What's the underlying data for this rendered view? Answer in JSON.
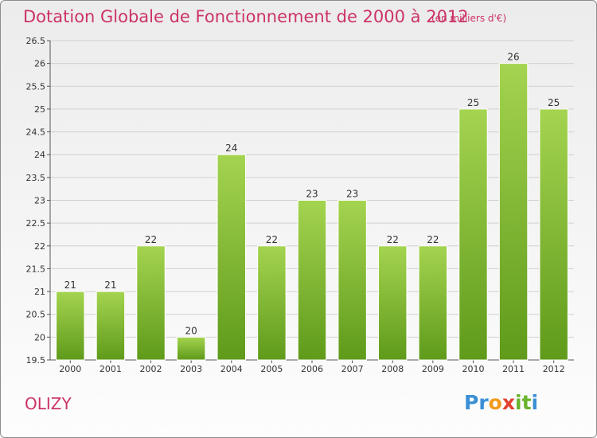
{
  "title": "Dotation Globale de Fonctionnement de 2000 à 2012",
  "subtitle": "(en milliers d'€)",
  "commune": "OLIZY",
  "logo": {
    "text": "Proxiti",
    "letters": [
      {
        "ch": "P",
        "color": "#3a8fd6"
      },
      {
        "ch": "r",
        "color": "#3a8fd6"
      },
      {
        "ch": "o",
        "color": "#f29a1c"
      },
      {
        "ch": "x",
        "color": "#e2412e"
      },
      {
        "ch": "i",
        "color": "#69b32d"
      },
      {
        "ch": "t",
        "color": "#69b32d"
      },
      {
        "ch": "i",
        "color": "#3a8fd6"
      }
    ]
  },
  "colors": {
    "title": "#cc3366",
    "bar_light": "#a4d450",
    "bar_dark": "#5f9a1a",
    "grid": "#d0d0d0"
  },
  "chart_data": {
    "type": "bar",
    "title": "Dotation Globale de Fonctionnement de 2000 à 2012",
    "subtitle": "(en milliers d'€)",
    "categories": [
      "2000",
      "2001",
      "2002",
      "2003",
      "2004",
      "2005",
      "2006",
      "2007",
      "2008",
      "2009",
      "2010",
      "2011",
      "2012"
    ],
    "values": [
      21,
      21,
      22,
      20,
      24,
      22,
      23,
      23,
      22,
      22,
      25,
      26,
      25
    ],
    "value_labels": [
      "21",
      "21",
      "22",
      "20",
      "24",
      "22",
      "23",
      "23",
      "22",
      "22",
      "25",
      "26",
      "25"
    ],
    "ylim": [
      19.5,
      26.5
    ],
    "yticks": [
      19.5,
      20,
      20.5,
      21,
      21.5,
      22,
      22.5,
      23,
      23.5,
      24,
      24.5,
      25,
      25.5,
      26,
      26.5
    ],
    "ytick_labels": [
      "19.5",
      "20",
      "20.5",
      "21",
      "21.5",
      "22",
      "22.5",
      "23",
      "23.5",
      "24",
      "24.5",
      "25",
      "25.5",
      "26",
      "26.5"
    ],
    "grid": true,
    "xlabel": "",
    "ylabel": ""
  }
}
